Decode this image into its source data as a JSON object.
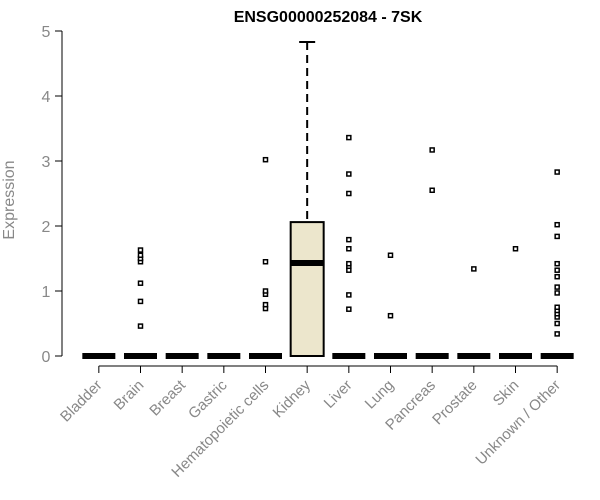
{
  "chart_data": {
    "type": "box",
    "title": "ENSG00000252084 - 7SK",
    "ylabel": "Expression",
    "xlabel": "",
    "ylim": [
      0,
      5
    ],
    "yticks": [
      0,
      1,
      2,
      3,
      4,
      5
    ],
    "categories": [
      "Bladder",
      "Brain",
      "Breast",
      "Gastric",
      "Hematopoietic cells",
      "Kidney",
      "Liver",
      "Lung",
      "Pancreas",
      "Prostate",
      "Skin",
      "Unknown / Other"
    ],
    "boxes": [
      {
        "q1": 0,
        "median": 0,
        "q3": 0,
        "whisker_low": 0,
        "whisker_high": 0,
        "outliers": []
      },
      {
        "q1": 0,
        "median": 0,
        "q3": 0,
        "whisker_low": 0,
        "whisker_high": 0,
        "outliers": [
          0.46,
          0.84,
          1.12,
          1.45,
          1.5,
          1.55,
          1.63
        ]
      },
      {
        "q1": 0,
        "median": 0,
        "q3": 0,
        "whisker_low": 0,
        "whisker_high": 0,
        "outliers": []
      },
      {
        "q1": 0,
        "median": 0,
        "q3": 0,
        "whisker_low": 0,
        "whisker_high": 0,
        "outliers": []
      },
      {
        "q1": 0,
        "median": 0,
        "q3": 0,
        "whisker_low": 0,
        "whisker_high": 0,
        "outliers": [
          0.73,
          0.79,
          0.95,
          1.0,
          1.45,
          3.02
        ]
      },
      {
        "q1": 0,
        "median": 1.43,
        "q3": 2.06,
        "whisker_low": 0,
        "whisker_high": 4.83,
        "outliers": []
      },
      {
        "q1": 0,
        "median": 0,
        "q3": 0,
        "whisker_low": 0,
        "whisker_high": 0,
        "outliers": [
          0.72,
          0.94,
          1.32,
          1.38,
          1.42,
          1.65,
          1.79,
          2.5,
          2.8,
          3.36
        ]
      },
      {
        "q1": 0,
        "median": 0,
        "q3": 0,
        "whisker_low": 0,
        "whisker_high": 0,
        "outliers": [
          0.62,
          1.55
        ]
      },
      {
        "q1": 0,
        "median": 0,
        "q3": 0,
        "whisker_low": 0,
        "whisker_high": 0,
        "outliers": [
          2.55,
          3.17
        ]
      },
      {
        "q1": 0,
        "median": 0,
        "q3": 0,
        "whisker_low": 0,
        "whisker_high": 0,
        "outliers": [
          1.34
        ]
      },
      {
        "q1": 0,
        "median": 0,
        "q3": 0,
        "whisker_low": 0,
        "whisker_high": 0,
        "outliers": [
          1.65
        ]
      },
      {
        "q1": 0,
        "median": 0,
        "q3": 0,
        "whisker_low": 0,
        "whisker_high": 0,
        "outliers": [
          0.34,
          0.5,
          0.6,
          0.65,
          0.7,
          0.75,
          0.97,
          1.06,
          1.22,
          1.32,
          1.42,
          1.84,
          2.02,
          2.83
        ]
      }
    ],
    "colors": {
      "box_fill": "#ece6cc",
      "stroke": "#000000",
      "axis_text": "#888888",
      "title": "#000000"
    },
    "grid": false
  }
}
